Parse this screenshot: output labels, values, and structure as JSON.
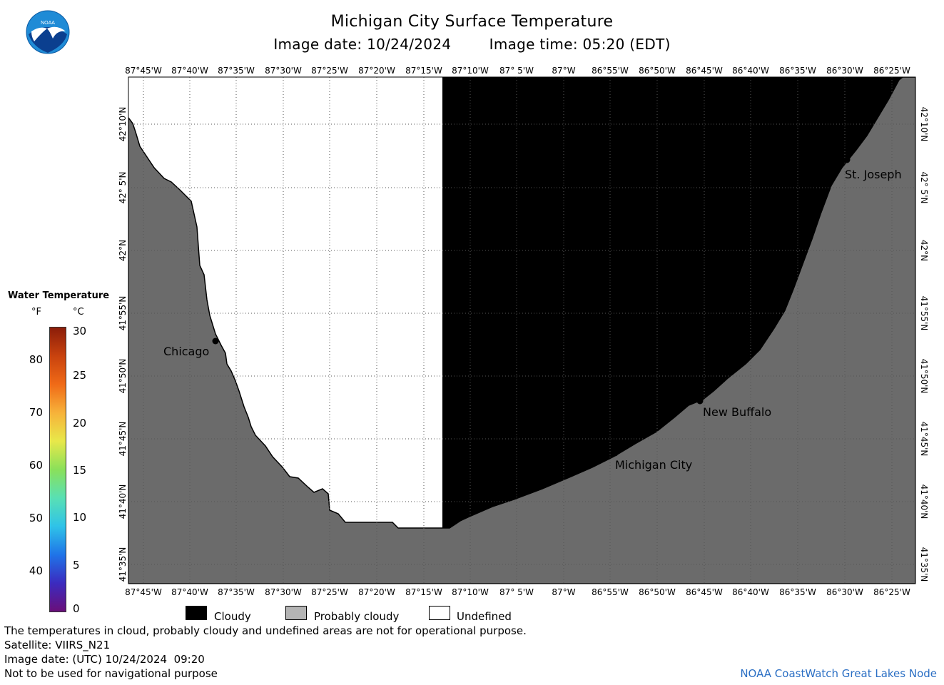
{
  "title": "Michigan City Surface Temperature",
  "subtitle": {
    "image_date": "Image date: 10/24/2024",
    "image_time": "Image time: 05:20 (EDT)"
  },
  "logo_text": "NOAA",
  "map": {
    "lon_labels": [
      "87°45'W",
      "87°40'W",
      "87°35'W",
      "87°30'W",
      "87°25'W",
      "87°20'W",
      "87°15'W",
      "87°10'W",
      "87° 5'W",
      "87°W",
      "86°55'W",
      "86°50'W",
      "86°45'W",
      "86°40'W",
      "86°35'W",
      "86°30'W",
      "86°25'W"
    ],
    "lat_labels": [
      "42°10'N",
      "42° 5'N",
      "42°N",
      "41°55'N",
      "41°50'N",
      "41°45'N",
      "41°40'N",
      "41°35'N"
    ],
    "cities": [
      {
        "name": "Chicago",
        "lon": -87.63,
        "lat": 41.88
      },
      {
        "name": "Michigan City",
        "lon": -86.9,
        "lat": 41.71
      },
      {
        "name": "New Buffalo",
        "lon": -86.75,
        "lat": 41.79
      },
      {
        "name": "St. Joseph",
        "lon": -86.48,
        "lat": 42.1
      }
    ],
    "colors": {
      "land": "#6b6b6b",
      "cloudy": "#000000",
      "undefined": "#ffffff",
      "grid": "#555555"
    }
  },
  "legend": {
    "title": "Water Temperature",
    "unit_f": "°F",
    "unit_c": "°C",
    "f_ticks": [
      "80",
      "70",
      "60",
      "50",
      "40"
    ],
    "c_ticks": [
      "30",
      "25",
      "20",
      "15",
      "10",
      "5",
      "0"
    ],
    "gradient": [
      "#6a0f7a",
      "#3b2bbf",
      "#1f74e8",
      "#2fc3e8",
      "#59e0b4",
      "#8ae05a",
      "#e8e84a",
      "#f7b23a",
      "#f06a17",
      "#c8420e",
      "#8b1d0a"
    ]
  },
  "key": {
    "cloudy": "Cloudy",
    "probably_cloudy": "Probably cloudy",
    "undefined": "Undefined",
    "colors": {
      "cloudy": "#000000",
      "probably_cloudy": "#b4b4b4",
      "undefined": "#ffffff"
    }
  },
  "notes": {
    "disclaimer": "The temperatures in cloud, probably cloudy and undefined areas are not for operational purpose.",
    "satellite": "Satellite: VIIRS_N21",
    "utc_date": "Image date: (UTC) 10/24/2024  09:20",
    "nav_warning": "Not to be used for navigational purpose"
  },
  "credit": "NOAA CoastWatch Great Lakes Node"
}
